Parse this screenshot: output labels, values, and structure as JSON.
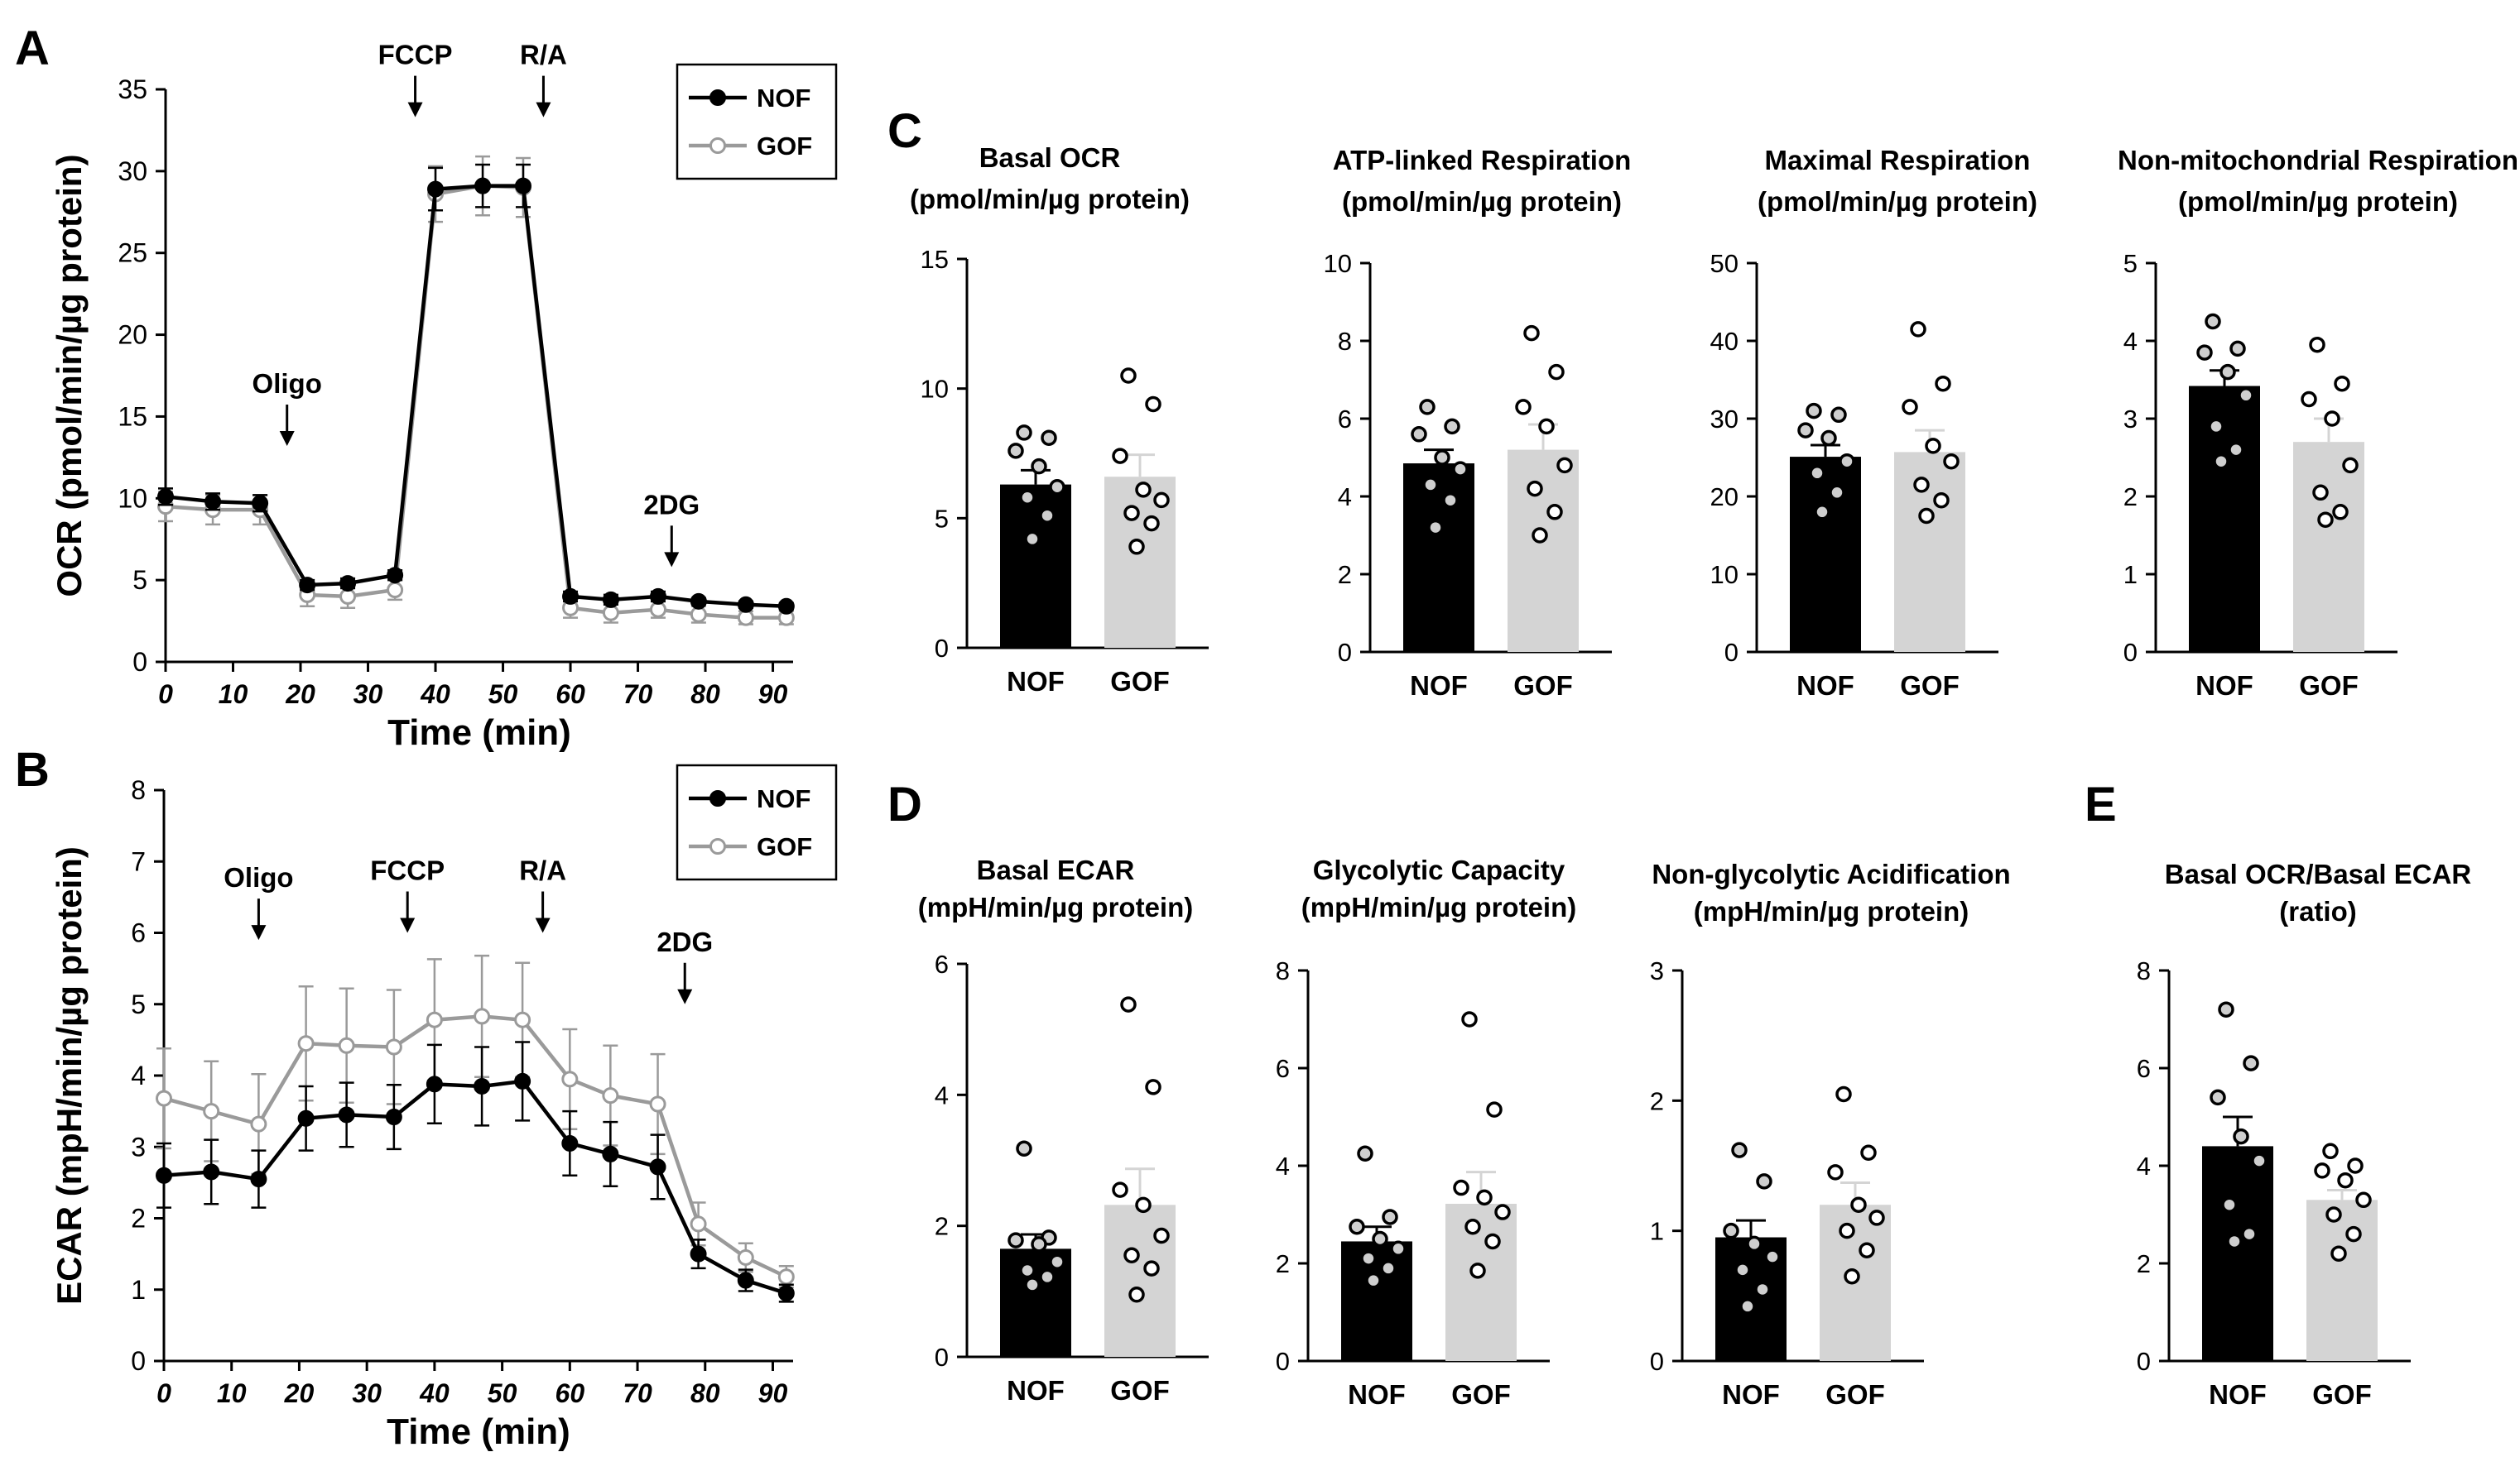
{
  "colors": {
    "nof": "#000000",
    "gof": "#9a9a9a",
    "gof_bar": "#d4d4d4",
    "axis": "#000000",
    "marker_fill_open": "#ffffff",
    "dot_light": "#cfcfcf"
  },
  "panel_letters": {
    "a": "A",
    "b": "B",
    "c": "C",
    "d": "D",
    "e": "E"
  },
  "chart_data": [
    {
      "id": "A",
      "type": "line",
      "xlabel": "Time (min)",
      "ylabel": "OCR (pmol/min/µg protein)",
      "xlim": [
        0,
        93
      ],
      "ylim": [
        0,
        35
      ],
      "xticks": [
        0,
        10,
        20,
        30,
        40,
        50,
        60,
        70,
        80,
        90
      ],
      "yticks": [
        0,
        5,
        10,
        15,
        20,
        25,
        30,
        35
      ],
      "x": [
        0,
        7,
        14,
        21,
        27,
        34,
        40,
        47,
        53,
        60,
        66,
        73,
        79,
        86,
        92
      ],
      "series": [
        {
          "name": "NOF",
          "values": [
            10.1,
            9.8,
            9.7,
            4.7,
            4.8,
            5.3,
            28.9,
            29.1,
            29.1,
            4.0,
            3.8,
            4.0,
            3.7,
            3.5,
            3.4
          ],
          "err": [
            0.5,
            0.5,
            0.5,
            0.3,
            0.3,
            0.3,
            1.3,
            1.3,
            1.3,
            0.3,
            0.3,
            0.3,
            0.2,
            0.2,
            0.2
          ]
        },
        {
          "name": "GOF",
          "values": [
            9.5,
            9.3,
            9.3,
            4.1,
            4.0,
            4.4,
            28.6,
            29.1,
            29.0,
            3.3,
            3.0,
            3.2,
            2.9,
            2.7,
            2.7
          ],
          "err": [
            0.9,
            0.9,
            0.9,
            0.7,
            0.7,
            0.6,
            1.7,
            1.8,
            1.8,
            0.6,
            0.6,
            0.5,
            0.5,
            0.4,
            0.4
          ]
        }
      ],
      "annotations": [
        {
          "label": "Oligo",
          "x": 18,
          "y": 13.2
        },
        {
          "label": "FCCP",
          "x": 37,
          "y": 33.3
        },
        {
          "label": "R/A",
          "x": 56,
          "y": 33.3
        },
        {
          "label": "2DG",
          "x": 75,
          "y": 5.8
        }
      ],
      "legend": "top-right"
    },
    {
      "id": "B",
      "type": "line",
      "xlabel": "Time (min)",
      "ylabel": "ECAR (mpH/min/µg protein)",
      "xlim": [
        0,
        93
      ],
      "ylim": [
        0,
        8
      ],
      "xticks": [
        0,
        10,
        20,
        30,
        40,
        50,
        60,
        70,
        80,
        90
      ],
      "yticks": [
        0,
        1,
        2,
        3,
        4,
        5,
        6,
        7,
        8
      ],
      "x": [
        0,
        7,
        14,
        21,
        27,
        34,
        40,
        47,
        53,
        60,
        66,
        73,
        79,
        86,
        92
      ],
      "series": [
        {
          "name": "NOF",
          "values": [
            2.6,
            2.65,
            2.55,
            3.4,
            3.45,
            3.42,
            3.88,
            3.85,
            3.92,
            3.05,
            2.9,
            2.72,
            1.5,
            1.13,
            0.95
          ],
          "err": [
            0.45,
            0.45,
            0.4,
            0.45,
            0.45,
            0.45,
            0.55,
            0.55,
            0.55,
            0.45,
            0.45,
            0.45,
            0.2,
            0.15,
            0.12
          ]
        },
        {
          "name": "GOF",
          "values": [
            3.68,
            3.5,
            3.32,
            4.45,
            4.42,
            4.4,
            4.78,
            4.83,
            4.78,
            3.95,
            3.72,
            3.6,
            1.92,
            1.45,
            1.18
          ],
          "err": [
            0.7,
            0.7,
            0.7,
            0.8,
            0.8,
            0.8,
            0.85,
            0.85,
            0.8,
            0.7,
            0.7,
            0.7,
            0.3,
            0.2,
            0.15
          ]
        }
      ],
      "annotations": [
        {
          "label": "Oligo",
          "x": 14,
          "y": 5.9
        },
        {
          "label": "FCCP",
          "x": 36,
          "y": 6.0
        },
        {
          "label": "R/A",
          "x": 56,
          "y": 6.0
        },
        {
          "label": "2DG",
          "x": 77,
          "y": 5.0
        }
      ],
      "legend": "top-right"
    },
    {
      "id": "C1",
      "type": "bar",
      "title": [
        "Basal OCR",
        "(pmol/min/µg protein)"
      ],
      "categories": [
        "NOF",
        "GOF"
      ],
      "ylim": [
        0,
        15
      ],
      "yticks": [
        0,
        5,
        10,
        15
      ],
      "values": [
        6.3,
        6.6
      ],
      "err": [
        0.55,
        0.85
      ],
      "points": [
        [
          8.3,
          8.1,
          7.6,
          7.0,
          6.2,
          5.8,
          5.1,
          4.2
        ],
        [
          10.5,
          9.4,
          7.4,
          6.1,
          5.7,
          5.2,
          4.8,
          3.9
        ]
      ]
    },
    {
      "id": "C2",
      "type": "bar",
      "title": [
        "ATP-linked Respiration",
        "(pmol/min/µg protein)"
      ],
      "categories": [
        "NOF",
        "GOF"
      ],
      "ylim": [
        0,
        10
      ],
      "yticks": [
        0,
        2,
        4,
        6,
        8,
        10
      ],
      "values": [
        4.85,
        5.2
      ],
      "err": [
        0.35,
        0.65
      ],
      "points": [
        [
          6.3,
          5.8,
          5.6,
          5.0,
          4.7,
          4.3,
          3.9,
          3.2
        ],
        [
          8.2,
          7.2,
          6.3,
          5.8,
          4.8,
          4.2,
          3.6,
          3.0
        ]
      ]
    },
    {
      "id": "C3",
      "type": "bar",
      "title": [
        "Maximal Respiration",
        "(pmol/min/µg protein)"
      ],
      "categories": [
        "NOF",
        "GOF"
      ],
      "ylim": [
        0,
        50
      ],
      "yticks": [
        0,
        10,
        20,
        30,
        40,
        50
      ],
      "values": [
        25.1,
        25.7
      ],
      "err": [
        1.5,
        2.8
      ],
      "points": [
        [
          31.0,
          30.5,
          28.5,
          27.5,
          24.5,
          23.0,
          20.5,
          18.0
        ],
        [
          41.5,
          34.5,
          31.5,
          26.5,
          24.5,
          21.5,
          19.5,
          17.5
        ]
      ]
    },
    {
      "id": "C4",
      "type": "bar",
      "title": [
        "Non-mitochondrial Respiration",
        "(pmol/min/µg protein)"
      ],
      "categories": [
        "NOF",
        "GOF"
      ],
      "ylim": [
        0,
        5
      ],
      "yticks": [
        0,
        1,
        2,
        3,
        4,
        5
      ],
      "values": [
        3.42,
        2.7
      ],
      "err": [
        0.2,
        0.3
      ],
      "points": [
        [
          4.25,
          3.9,
          3.85,
          3.6,
          3.3,
          2.9,
          2.6,
          2.45
        ],
        [
          3.95,
          3.45,
          3.25,
          3.0,
          2.4,
          2.05,
          1.8,
          1.7
        ]
      ]
    },
    {
      "id": "D1",
      "type": "bar",
      "title": [
        "Basal ECAR",
        "(mpH/min/µg protein)"
      ],
      "categories": [
        "NOF",
        "GOF"
      ],
      "ylim": [
        0,
        6
      ],
      "yticks": [
        0,
        2,
        4,
        6
      ],
      "values": [
        1.65,
        2.32
      ],
      "err": [
        0.22,
        0.55
      ],
      "points": [
        [
          3.18,
          1.82,
          1.78,
          1.72,
          1.45,
          1.32,
          1.22,
          1.1
        ],
        [
          5.38,
          4.12,
          2.55,
          2.32,
          1.85,
          1.55,
          1.35,
          0.95
        ]
      ]
    },
    {
      "id": "D2",
      "type": "bar",
      "title": [
        "Glycolytic Capacity",
        "(mpH/min/µg protein)"
      ],
      "categories": [
        "NOF",
        "GOF"
      ],
      "ylim": [
        0,
        8
      ],
      "yticks": [
        0,
        2,
        4,
        6,
        8
      ],
      "values": [
        2.45,
        3.22
      ],
      "err": [
        0.3,
        0.65
      ],
      "points": [
        [
          4.25,
          2.95,
          2.75,
          2.5,
          2.3,
          2.1,
          1.9,
          1.65
        ],
        [
          7.0,
          5.15,
          3.55,
          3.35,
          3.05,
          2.75,
          2.45,
          1.85
        ]
      ]
    },
    {
      "id": "D3",
      "type": "bar",
      "title": [
        "Non-glycolytic Acidification",
        "(mpH/min/µg protein)"
      ],
      "categories": [
        "NOF",
        "GOF"
      ],
      "ylim": [
        0,
        3
      ],
      "yticks": [
        0,
        1,
        2,
        3
      ],
      "values": [
        0.95,
        1.2
      ],
      "err": [
        0.13,
        0.17
      ],
      "points": [
        [
          1.62,
          1.38,
          1.0,
          0.9,
          0.8,
          0.7,
          0.55,
          0.42
        ],
        [
          2.05,
          1.6,
          1.45,
          1.2,
          1.1,
          1.0,
          0.85,
          0.65
        ]
      ]
    },
    {
      "id": "E",
      "type": "bar",
      "title": [
        "Basal OCR/Basal ECAR",
        "(ratio)"
      ],
      "categories": [
        "NOF",
        "GOF"
      ],
      "ylim": [
        0,
        8
      ],
      "yticks": [
        0,
        2,
        4,
        6,
        8
      ],
      "values": [
        4.4,
        3.3
      ],
      "err": [
        0.6,
        0.2
      ],
      "points": [
        [
          7.2,
          6.1,
          5.4,
          4.6,
          4.1,
          3.2,
          2.6,
          2.45
        ],
        [
          4.3,
          4.0,
          3.9,
          3.7,
          3.3,
          3.0,
          2.6,
          2.2
        ]
      ]
    }
  ]
}
